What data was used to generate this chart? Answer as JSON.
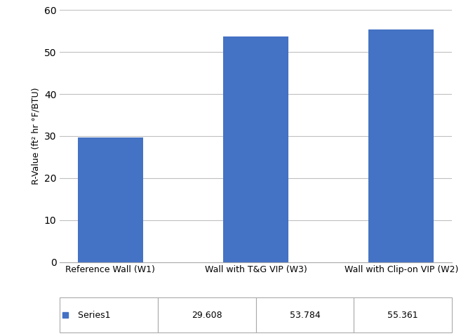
{
  "categories": [
    "Reference Wall (W1)",
    "Wall with T&G VIP (W3)",
    "Wall with Clip-on VIP (W2)"
  ],
  "values": [
    29.608,
    53.784,
    55.361
  ],
  "bar_color": "#4472C4",
  "ylabel": "R-Value (ft² hr °F/BTU)",
  "ylim": [
    0,
    60
  ],
  "yticks": [
    0,
    10,
    20,
    30,
    40,
    50,
    60
  ],
  "legend_label": "Series1",
  "legend_color": "#4472C4",
  "table_values": [
    "29.608",
    "53.784",
    "55.361"
  ],
  "background_color": "#ffffff",
  "grid_color": "#c0c0c0",
  "bar_width": 0.45
}
